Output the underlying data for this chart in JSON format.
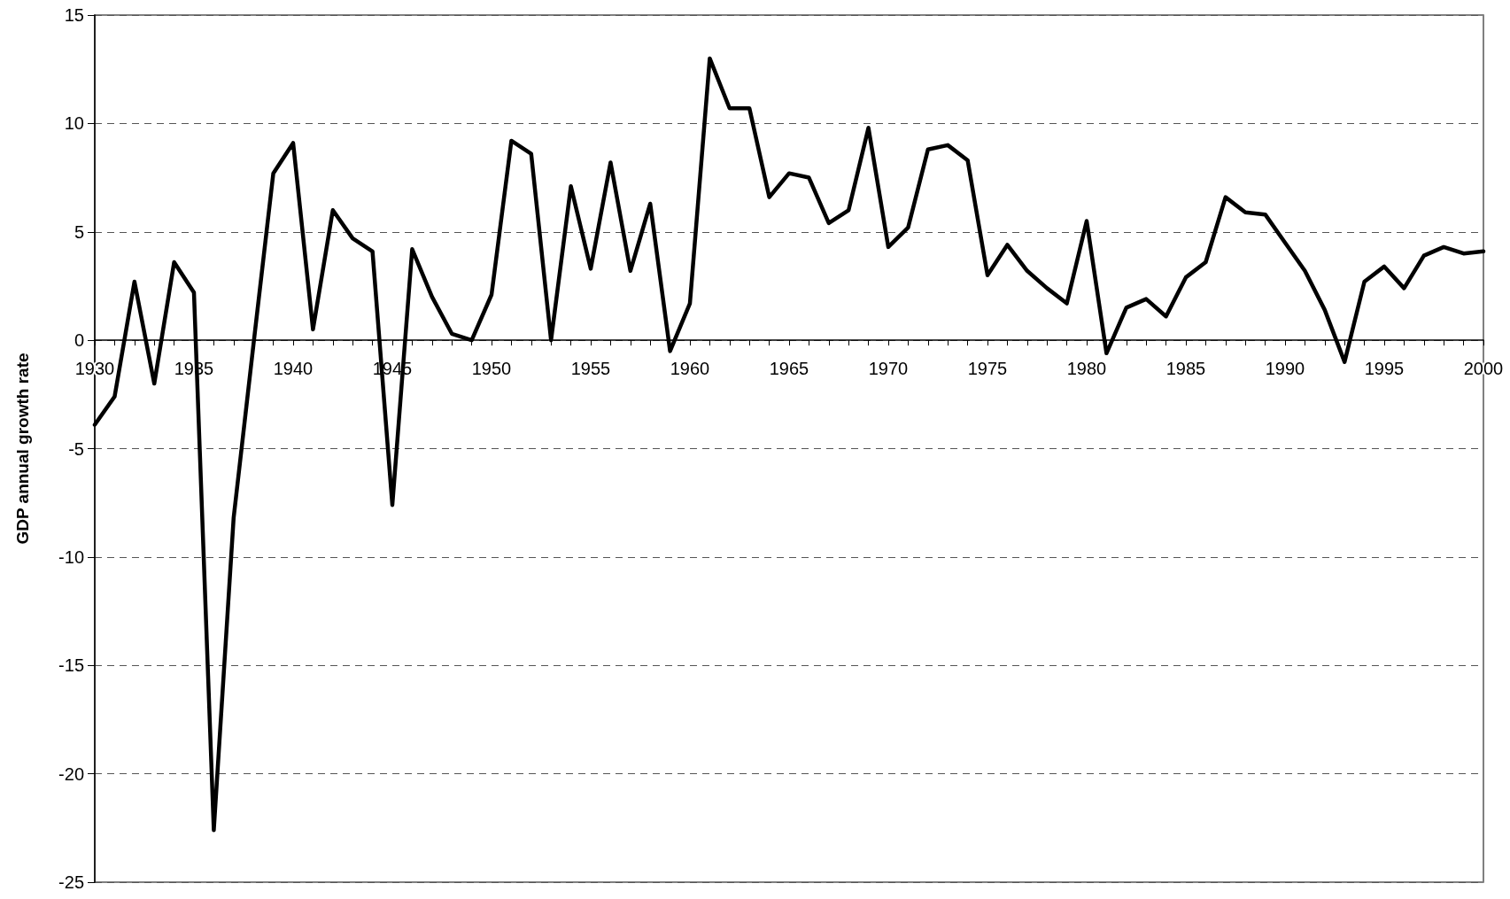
{
  "chart_data": {
    "type": "line",
    "ylabel": "GDP annual growth rate",
    "x": [
      1930,
      1931,
      1932,
      1933,
      1934,
      1935,
      1936,
      1937,
      1938,
      1939,
      1940,
      1941,
      1942,
      1943,
      1944,
      1945,
      1946,
      1947,
      1948,
      1949,
      1950,
      1951,
      1952,
      1953,
      1954,
      1955,
      1956,
      1957,
      1958,
      1959,
      1960,
      1961,
      1962,
      1963,
      1964,
      1965,
      1966,
      1967,
      1968,
      1969,
      1970,
      1971,
      1972,
      1973,
      1974,
      1975,
      1976,
      1977,
      1978,
      1979,
      1980,
      1981,
      1982,
      1983,
      1984,
      1985,
      1986,
      1987,
      1988,
      1989,
      1990,
      1991,
      1992,
      1993,
      1994,
      1995,
      1996,
      1997,
      1998,
      1999,
      2000
    ],
    "series": [
      {
        "color": "#000000",
        "values": [
          -3.9,
          -2.6,
          2.7,
          -2.0,
          3.6,
          2.2,
          -22.6,
          -8.2,
          -0.2,
          7.7,
          9.1,
          0.5,
          6.0,
          4.7,
          4.1,
          -7.6,
          4.2,
          2.0,
          0.3,
          0.0,
          2.1,
          9.2,
          8.6,
          0.0,
          7.1,
          3.3,
          8.2,
          3.2,
          6.3,
          -0.5,
          1.7,
          13.0,
          10.7,
          10.7,
          6.6,
          7.7,
          7.5,
          5.4,
          6.0,
          9.8,
          4.3,
          5.2,
          8.8,
          9.0,
          8.3,
          3.0,
          4.4,
          3.2,
          2.4,
          1.7,
          5.5,
          -0.6,
          1.5,
          1.9,
          1.1,
          2.9,
          3.6,
          6.6,
          5.9,
          5.8,
          4.5,
          3.2,
          1.4,
          -1.0,
          2.7,
          3.4,
          2.4,
          3.9,
          4.3,
          4.0,
          4.1
        ]
      }
    ],
    "xlim": [
      1930,
      2000
    ],
    "xticks": [
      1930,
      {
        "value": 1931,
        "label": null
      },
      {
        "value": 1932,
        "label": null
      },
      {
        "value": 1933,
        "label": null
      },
      {
        "value": 1934,
        "label": null
      },
      1935,
      {
        "value": 1936,
        "label": null
      },
      {
        "value": 1937,
        "label": null
      },
      {
        "value": 1938,
        "label": null
      },
      {
        "value": 1939,
        "label": null
      },
      1940,
      {
        "value": 1941,
        "label": null
      },
      {
        "value": 1942,
        "label": null
      },
      {
        "value": 1943,
        "label": null
      },
      {
        "value": 1944,
        "label": null
      },
      1945,
      {
        "value": 1946,
        "label": null
      },
      {
        "value": 1947,
        "label": null
      },
      {
        "value": 1948,
        "label": null
      },
      {
        "value": 1949,
        "label": null
      },
      1950,
      {
        "value": 1951,
        "label": null
      },
      {
        "value": 1952,
        "label": null
      },
      {
        "value": 1953,
        "label": null
      },
      {
        "value": 1954,
        "label": null
      },
      1955,
      {
        "value": 1956,
        "label": null
      },
      {
        "value": 1957,
        "label": null
      },
      {
        "value": 1958,
        "label": null
      },
      {
        "value": 1959,
        "label": null
      },
      1960,
      {
        "value": 1961,
        "label": null
      },
      {
        "value": 1962,
        "label": null
      },
      {
        "value": 1963,
        "label": null
      },
      {
        "value": 1964,
        "label": null
      },
      1965,
      {
        "value": 1966,
        "label": null
      },
      {
        "value": 1967,
        "label": null
      },
      {
        "value": 1968,
        "label": null
      },
      {
        "value": 1969,
        "label": null
      },
      1970,
      {
        "value": 1971,
        "label": null
      },
      {
        "value": 1972,
        "label": null
      },
      {
        "value": 1973,
        "label": null
      },
      {
        "value": 1974,
        "label": null
      },
      1975,
      {
        "value": 1976,
        "label": null
      },
      {
        "value": 1977,
        "label": null
      },
      {
        "value": 1978,
        "label": null
      },
      {
        "value": 1979,
        "label": null
      },
      1980,
      {
        "value": 1981,
        "label": null
      },
      {
        "value": 1982,
        "label": null
      },
      {
        "value": 1983,
        "label": null
      },
      {
        "value": 1984,
        "label": null
      },
      1985,
      {
        "value": 1986,
        "label": null
      },
      {
        "value": 1987,
        "label": null
      },
      {
        "value": 1988,
        "label": null
      },
      {
        "value": 1989,
        "label": null
      },
      1990,
      {
        "value": 1991,
        "label": null
      },
      {
        "value": 1992,
        "label": null
      },
      {
        "value": 1993,
        "label": null
      },
      {
        "value": 1994,
        "label": null
      },
      1995,
      {
        "value": 1996,
        "label": null
      },
      {
        "value": 1997,
        "label": null
      },
      {
        "value": 1998,
        "label": null
      },
      {
        "value": 1999,
        "label": null
      },
      2000
    ],
    "ylim": [
      -25,
      15
    ],
    "yticks": [
      -25,
      -20,
      -15,
      -10,
      -5,
      0,
      5,
      10,
      15
    ],
    "grid": "y",
    "marker": "none",
    "line_style": "solid"
  }
}
